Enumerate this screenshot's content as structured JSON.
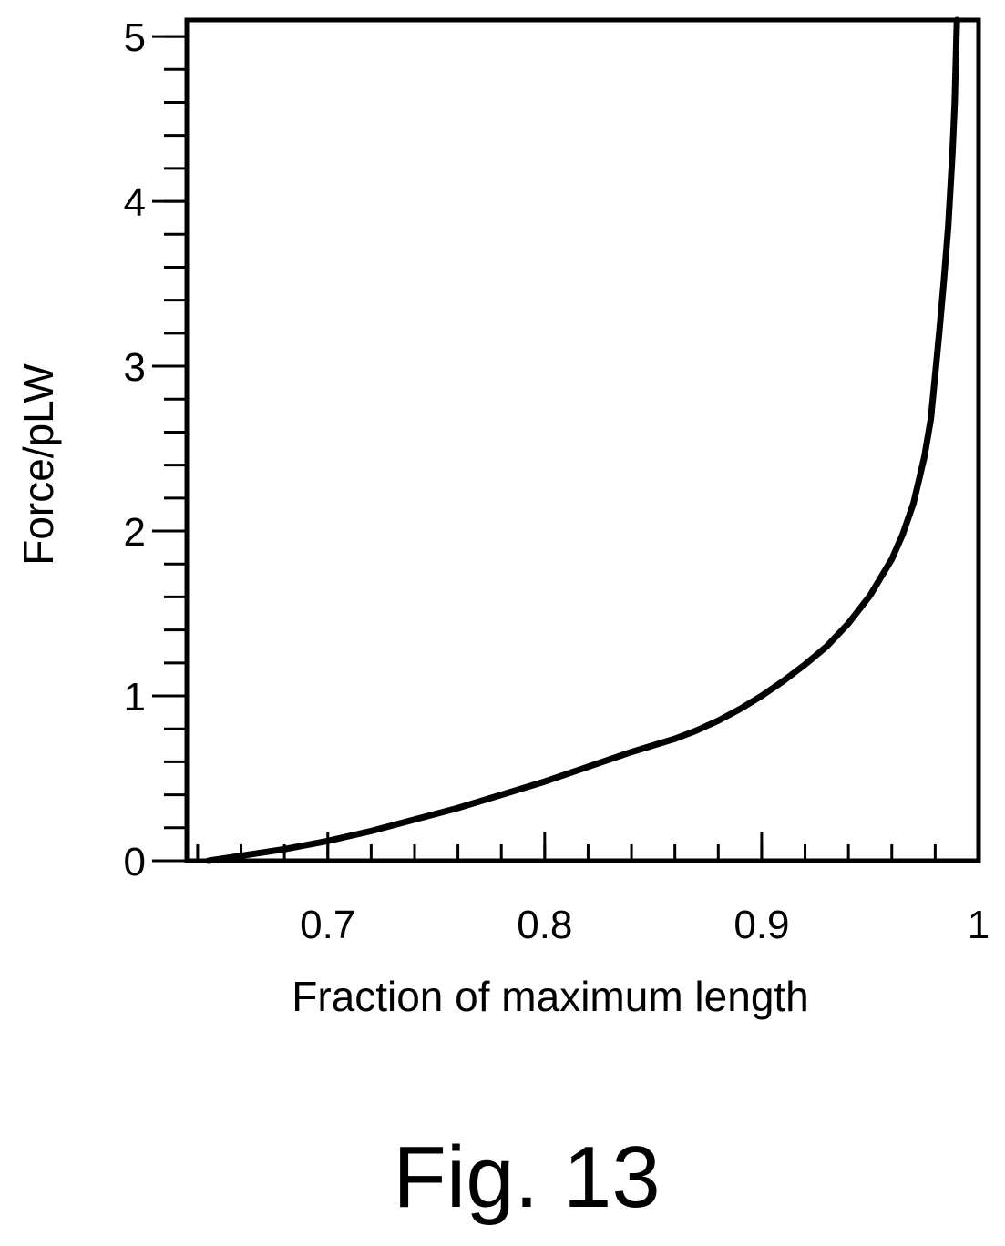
{
  "caption": "Fig. 13",
  "chart_data": {
    "type": "line",
    "title": "",
    "xlabel": "Fraction of maximum length",
    "ylabel": "Force/pLW",
    "xlim": [
      0.635,
      1.0
    ],
    "ylim": [
      0,
      5.1
    ],
    "x_ticks": [
      {
        "value": 0.7,
        "label": "0.7"
      },
      {
        "value": 0.8,
        "label": "0.8"
      },
      {
        "value": 0.9,
        "label": "0.9"
      },
      {
        "value": 1.0,
        "label": "1"
      }
    ],
    "x_minor_step": 0.02,
    "y_ticks": [
      {
        "value": 0,
        "label": "0"
      },
      {
        "value": 1,
        "label": "1"
      },
      {
        "value": 2,
        "label": "2"
      },
      {
        "value": 3,
        "label": "3"
      },
      {
        "value": 4,
        "label": "4"
      },
      {
        "value": 5,
        "label": "5"
      }
    ],
    "y_minor_step": 0.2,
    "grid": false,
    "line_color": "#000000",
    "series": [
      {
        "x": [
          0.645,
          0.66,
          0.68,
          0.7,
          0.72,
          0.74,
          0.76,
          0.78,
          0.8,
          0.82,
          0.84,
          0.86,
          0.87,
          0.88,
          0.89,
          0.9,
          0.91,
          0.92,
          0.93,
          0.94,
          0.95,
          0.96,
          0.965,
          0.97,
          0.975,
          0.978,
          0.98,
          0.982,
          0.984,
          0.986,
          0.988,
          0.989,
          0.9895,
          0.99
        ],
        "y": [
          0.0,
          0.03,
          0.07,
          0.12,
          0.18,
          0.25,
          0.32,
          0.4,
          0.48,
          0.57,
          0.66,
          0.74,
          0.79,
          0.85,
          0.92,
          1.0,
          1.09,
          1.19,
          1.3,
          1.44,
          1.61,
          1.83,
          1.98,
          2.17,
          2.45,
          2.68,
          2.95,
          3.22,
          3.52,
          3.85,
          4.3,
          4.6,
          4.85,
          5.1
        ]
      }
    ]
  }
}
